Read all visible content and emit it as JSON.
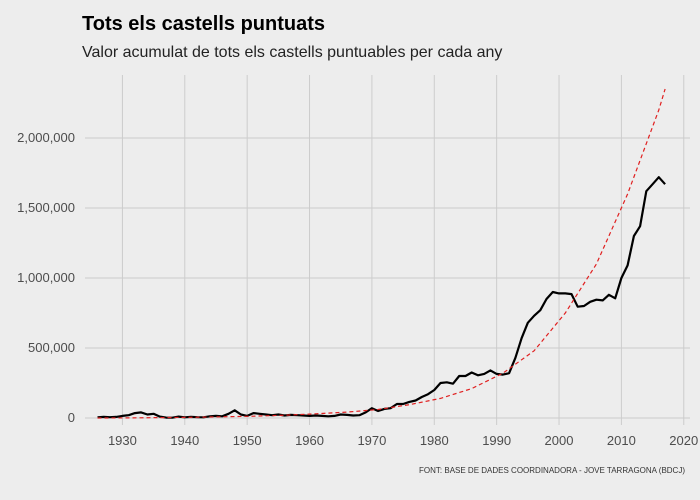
{
  "chart_data": {
    "type": "line",
    "title": "Tots els castells puntuats",
    "subtitle": "Valor acumulat de tots els castells puntuables per cada any",
    "caption": "FONT: BASE DE DADES COORDINADORA - JOVE TARRAGONA (BDCJ)",
    "xlabel": "",
    "ylabel": "",
    "xlim": [
      1924,
      2021
    ],
    "ylim": [
      -50000,
      2450000
    ],
    "xticks": [
      1930,
      1940,
      1950,
      1960,
      1970,
      1980,
      1990,
      2000,
      2010,
      2020
    ],
    "yticks": [
      0,
      500000,
      1000000,
      1500000,
      2000000
    ],
    "ytick_labels": [
      "0",
      "500,000",
      "1,000,000",
      "1,500,000",
      "2,000,000"
    ],
    "grid": true,
    "legend": "none",
    "series": [
      {
        "style": "solid",
        "color": "#000000",
        "x": [
          1926,
          1927,
          1928,
          1929,
          1930,
          1931,
          1932,
          1933,
          1934,
          1935,
          1936,
          1937,
          1938,
          1939,
          1940,
          1941,
          1942,
          1943,
          1944,
          1945,
          1946,
          1947,
          1948,
          1949,
          1950,
          1951,
          1952,
          1953,
          1954,
          1955,
          1956,
          1957,
          1958,
          1959,
          1960,
          1961,
          1962,
          1963,
          1964,
          1965,
          1966,
          1967,
          1968,
          1969,
          1970,
          1971,
          1972,
          1973,
          1974,
          1975,
          1976,
          1977,
          1978,
          1979,
          1980,
          1981,
          1982,
          1983,
          1984,
          1985,
          1986,
          1987,
          1988,
          1989,
          1990,
          1991,
          1992,
          1993,
          1994,
          1995,
          1996,
          1997,
          1998,
          1999,
          2000,
          2001,
          2002,
          2003,
          2004,
          2005,
          2006,
          2007,
          2008,
          2009,
          2010,
          2011,
          2012,
          2013,
          2014,
          2015,
          2016,
          2017
        ],
        "y": [
          5000,
          8000,
          6000,
          8000,
          15000,
          20000,
          35000,
          40000,
          25000,
          30000,
          10000,
          3000,
          2000,
          10000,
          5000,
          8000,
          6000,
          5000,
          12000,
          15000,
          12000,
          30000,
          55000,
          25000,
          15000,
          35000,
          30000,
          25000,
          20000,
          25000,
          18000,
          22000,
          20000,
          18000,
          15000,
          18000,
          15000,
          12000,
          15000,
          25000,
          22000,
          18000,
          20000,
          40000,
          70000,
          50000,
          65000,
          70000,
          100000,
          100000,
          115000,
          125000,
          150000,
          170000,
          200000,
          250000,
          255000,
          245000,
          300000,
          300000,
          325000,
          305000,
          315000,
          340000,
          315000,
          310000,
          320000,
          430000,
          570000,
          680000,
          730000,
          770000,
          850000,
          900000,
          890000,
          890000,
          885000,
          795000,
          800000,
          830000,
          845000,
          840000,
          880000,
          855000,
          1000000,
          1090000,
          1300000,
          1370000,
          1620000,
          1670000,
          1720000,
          1670000
        ]
      },
      {
        "style": "dashed",
        "color": "#e02020",
        "x": [
          1926,
          1931,
          1936,
          1941,
          1946,
          1951,
          1956,
          1961,
          1966,
          1971,
          1976,
          1981,
          1986,
          1991,
          1996,
          2001,
          2006,
          2011,
          2016,
          2017
        ],
        "y": [
          0,
          1000,
          2500,
          5000,
          8500,
          13000,
          20000,
          30000,
          42000,
          61000,
          95000,
          140000,
          210000,
          320000,
          480000,
          750000,
          1100000,
          1600000,
          2200000,
          2350000
        ]
      }
    ]
  }
}
